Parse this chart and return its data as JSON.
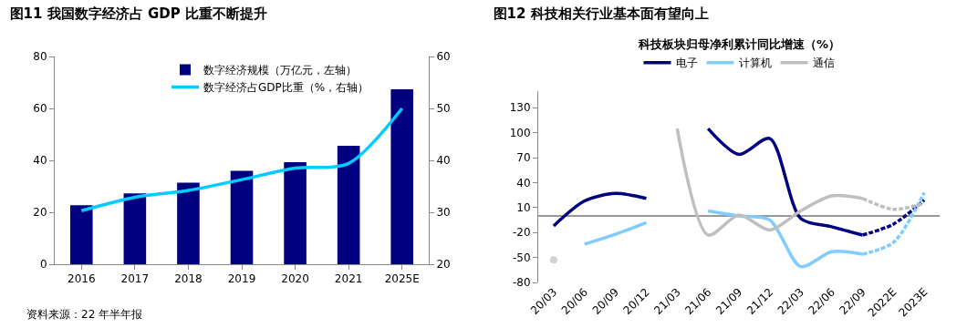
{
  "chart_data": [
    {
      "type": "bar",
      "title": "图11 我国数字经济占 GDP 比重不断提升",
      "categories": [
        "2016",
        "2017",
        "2018",
        "2019",
        "2020",
        "2021",
        "2025E"
      ],
      "series": [
        {
          "name": "数字经济规模（万亿元，左轴）",
          "type": "bar",
          "color": "#000080",
          "values": [
            22.7,
            27.3,
            31.4,
            36.0,
            39.3,
            45.6,
            67.4
          ]
        },
        {
          "name": "数字经济占GDP比重（%，右轴）",
          "type": "line",
          "axis": "y2",
          "color": "#00ccff",
          "values": [
            30.3,
            32.9,
            34.2,
            36.3,
            38.5,
            39.4,
            50.0
          ]
        }
      ],
      "ylim": [
        0,
        80
      ],
      "yticks": [
        0,
        20,
        40,
        60,
        80
      ],
      "y2lim": [
        20,
        60
      ],
      "y2ticks": [
        20,
        30,
        40,
        50,
        60
      ],
      "grid": false,
      "legend": "top",
      "marker": "none",
      "annotations": [
        "资料来源：22 年半年报"
      ]
    },
    {
      "type": "line",
      "title": "图12 科技相关行业基本面有望向上",
      "subtitle": "科技板块归母净利累计同比增速（%）",
      "categories": [
        "20/03",
        "20/06",
        "20/09",
        "20/12",
        "21/03",
        "21/06",
        "21/09",
        "21/12",
        "22/03",
        "22/06",
        "22/09",
        "2022E",
        "2023E"
      ],
      "series": [
        {
          "name": "电子",
          "color": "#000080",
          "values": [
            -12,
            18,
            27,
            21,
            null,
            105,
            74,
            93,
            -3,
            -13,
            -23,
            null,
            null
          ]
        },
        {
          "name": "计算机",
          "color": "#80ccff",
          "values": [
            null,
            -34,
            -22,
            -8,
            null,
            6,
            0,
            -5,
            -61,
            -43,
            -46,
            null,
            null
          ]
        },
        {
          "name": "通信",
          "color": "#bfbfbf",
          "values": [
            -53,
            null,
            null,
            null,
            105,
            -23,
            1,
            -17,
            6,
            24,
            21,
            null,
            null
          ]
        },
        {
          "color": "#000080",
          "line_style": "dashed",
          "values": [
            null,
            null,
            null,
            null,
            null,
            null,
            null,
            null,
            null,
            null,
            -23,
            -10,
            19
          ]
        },
        {
          "color": "#80ccff",
          "line_style": "dashed",
          "values": [
            null,
            null,
            null,
            null,
            null,
            null,
            null,
            null,
            null,
            null,
            -46,
            -32,
            28
          ]
        },
        {
          "color": "#bfbfbf",
          "line_style": "dashed",
          "values": [
            null,
            null,
            null,
            null,
            null,
            null,
            null,
            null,
            null,
            null,
            21,
            8,
            15
          ]
        }
      ],
      "ylim": [
        -80,
        150
      ],
      "yticks": [
        -80,
        -50,
        -20,
        10,
        40,
        70,
        100,
        130
      ],
      "grid": false,
      "legend": "top",
      "marker": "none",
      "line_style": "solid"
    }
  ]
}
